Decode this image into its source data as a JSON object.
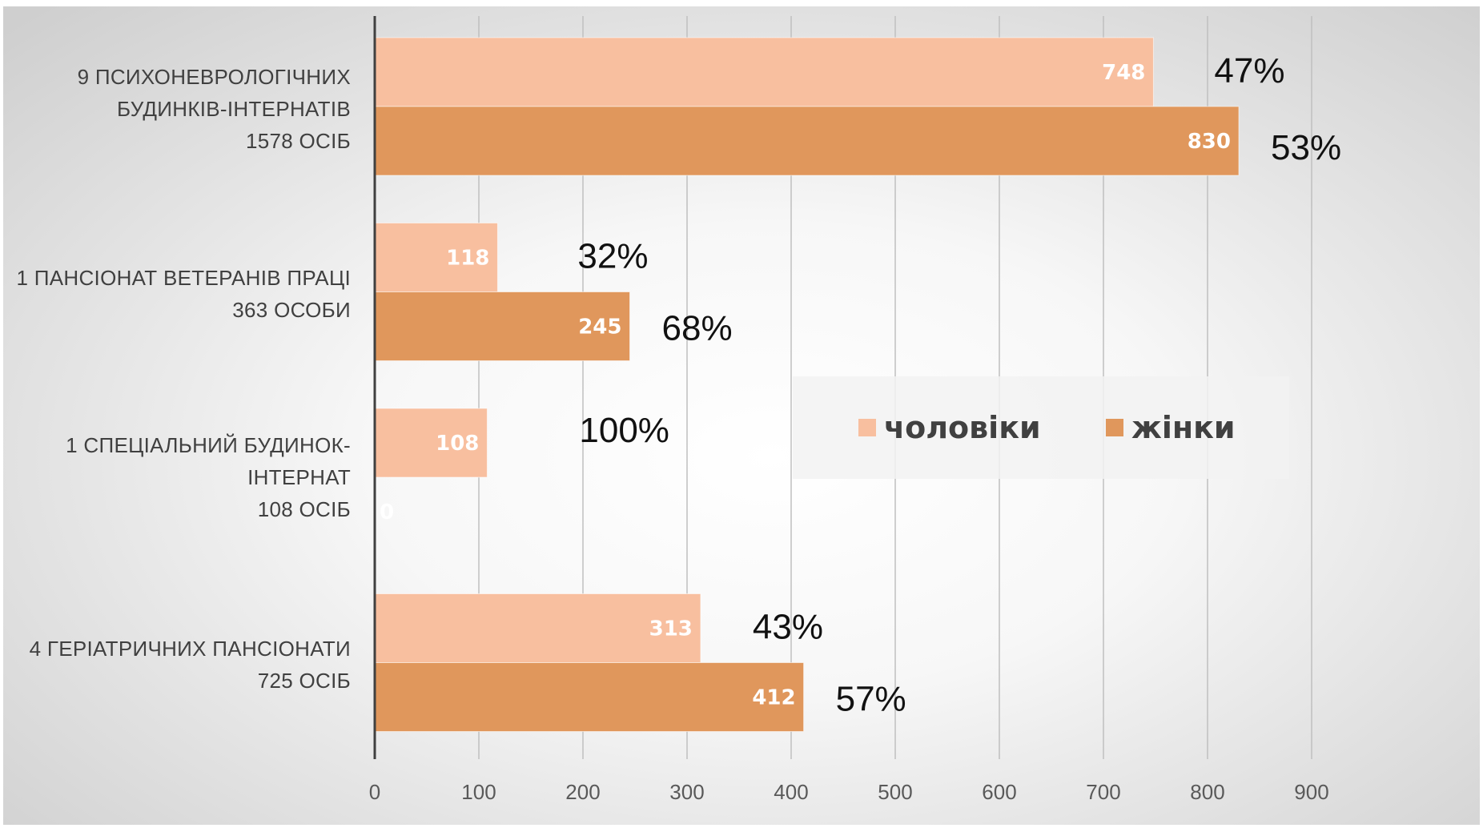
{
  "chart_data": {
    "type": "bar",
    "orientation": "horizontal",
    "categories": [
      [
        "9 ПСИХОНЕВРОЛОГІЧНИХ",
        "БУДИНКІВ-ІНТЕРНАТІВ",
        "1578 ОСІБ"
      ],
      [
        "1 ПАНСІОНАТ ВЕТЕРАНІВ ПРАЦІ",
        "363 ОСОБИ"
      ],
      [
        "1 СПЕЦІАЛЬНИЙ БУДИНОК-",
        "ІНТЕРНАТ",
        "108 ОСІБ"
      ],
      [
        "4 ГЕРІАТРИЧНИХ ПАНСІОНАТИ",
        "725 ОСІБ"
      ]
    ],
    "series": [
      {
        "name": "чоловіки",
        "color": "#f8bf9f",
        "values": [
          748,
          118,
          108,
          313
        ],
        "percent_labels": [
          "47%",
          "32%",
          "100%",
          "43%"
        ]
      },
      {
        "name": "жінки",
        "color": "#e0975c",
        "values": [
          830,
          245,
          0,
          412
        ],
        "percent_labels": [
          "53%",
          "68%",
          "",
          "57%"
        ]
      }
    ],
    "xlim": [
      0,
      900
    ],
    "xticks": [
      0,
      100,
      200,
      300,
      400,
      500,
      600,
      700,
      800,
      900
    ],
    "grid": true,
    "legend_position": "center-right"
  }
}
